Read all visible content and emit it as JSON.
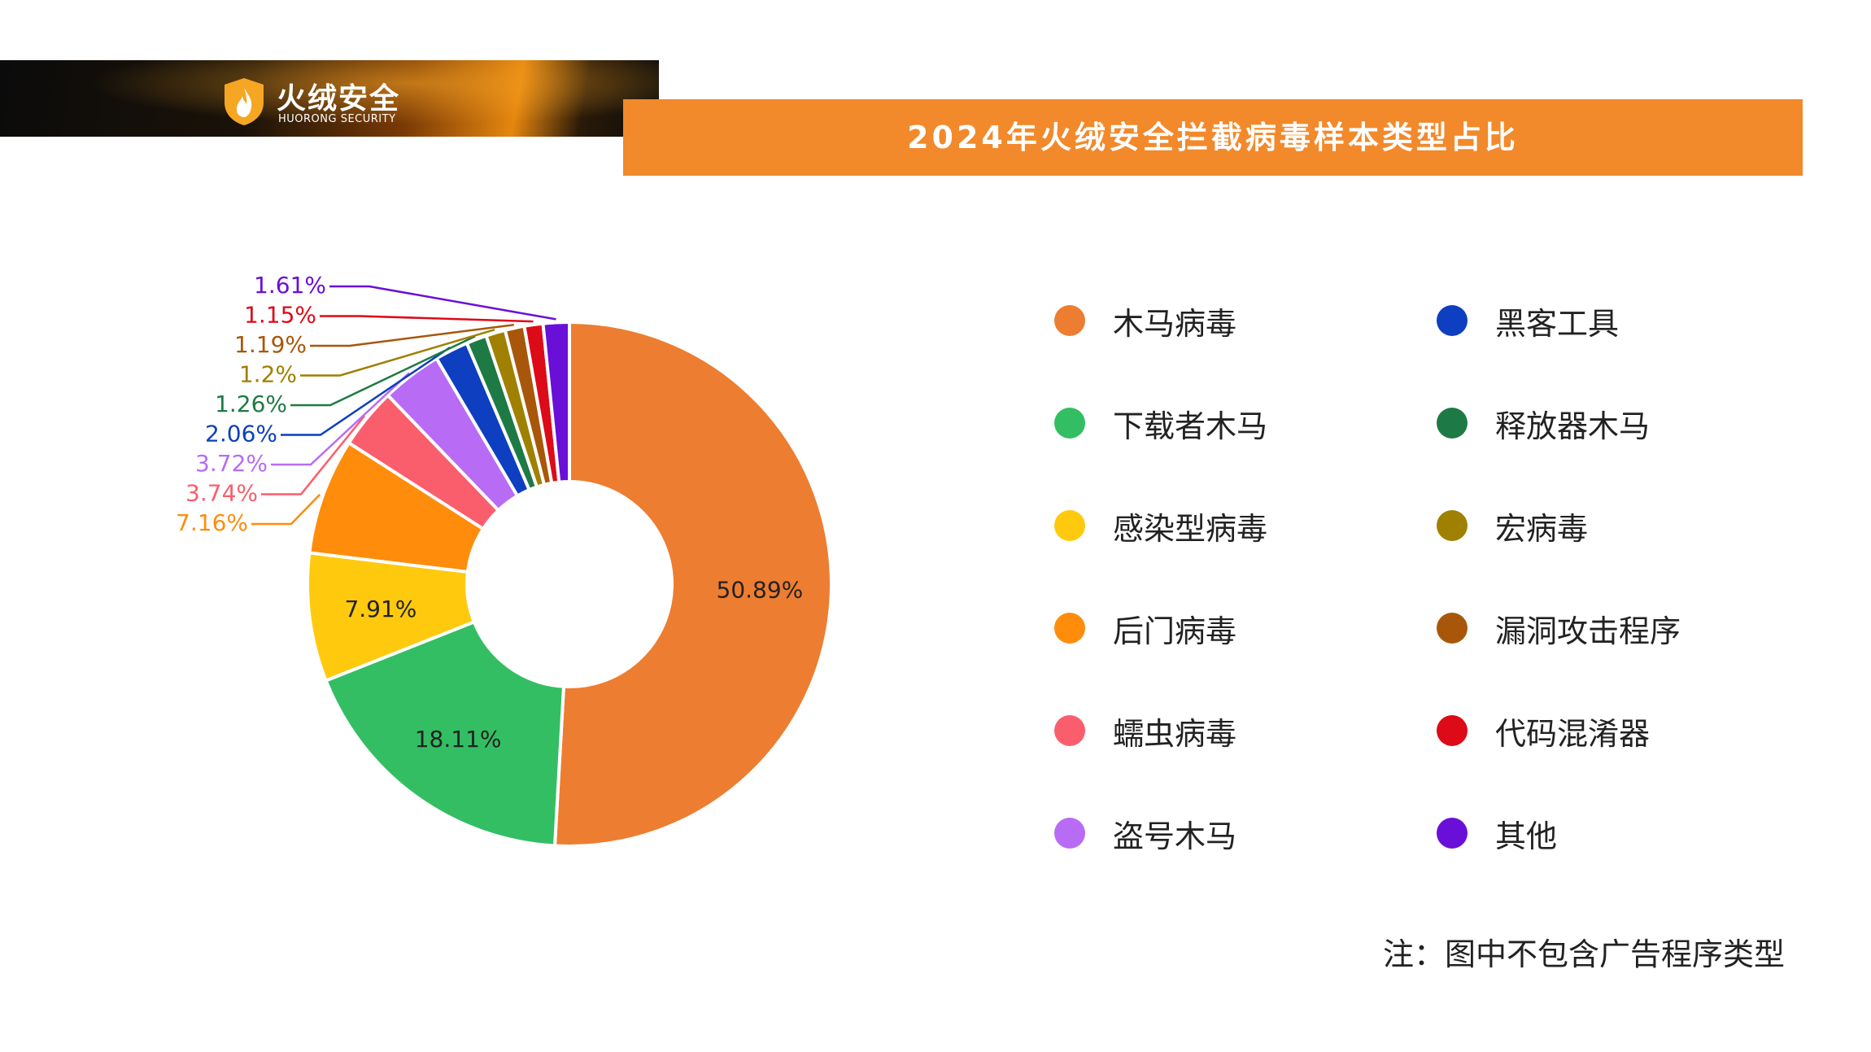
{
  "brand": {
    "name": "火绒安全",
    "subtitle": "HUORONG SECURITY"
  },
  "title": "2024年火绒安全拦截病毒样本类型占比",
  "note": "注：图中不包含广告程序类型",
  "chart_data": {
    "type": "donut",
    "title": "2024年火绒安全拦截病毒样本类型占比",
    "unit": "%",
    "legend_position": "right",
    "series": [
      {
        "name": "木马病毒",
        "value": 50.89,
        "label": "50.89%",
        "color": "#ed7d31"
      },
      {
        "name": "下载者木马",
        "value": 18.11,
        "label": "18.11%",
        "color": "#33be63"
      },
      {
        "name": "感染型病毒",
        "value": 7.91,
        "label": "7.91%",
        "color": "#ffc90e"
      },
      {
        "name": "后门病毒",
        "value": 7.16,
        "label": "7.16%",
        "color": "#ff8c0b"
      },
      {
        "name": "蠕虫病毒",
        "value": 3.74,
        "label": "3.74%",
        "color": "#fa5e6c"
      },
      {
        "name": "盗号木马",
        "value": 3.72,
        "label": "3.72%",
        "color": "#b86cf5"
      },
      {
        "name": "黑客工具",
        "value": 2.06,
        "label": "2.06%",
        "color": "#0d3fc0"
      },
      {
        "name": "释放器木马",
        "value": 1.26,
        "label": "1.26%",
        "color": "#1e7a44"
      },
      {
        "name": "宏病毒",
        "value": 1.2,
        "label": "1.2%",
        "color": "#a08000"
      },
      {
        "name": "漏洞攻击程序",
        "value": 1.19,
        "label": "1.19%",
        "color": "#a8570a"
      },
      {
        "name": "代码混淆器",
        "value": 1.15,
        "label": "1.15%",
        "color": "#dd0a18"
      },
      {
        "name": "其他",
        "value": 1.61,
        "label": "1.61%",
        "color": "#6a0fd8"
      }
    ],
    "legend_order": [
      "木马病毒",
      "黑客工具",
      "下载者木马",
      "释放器木马",
      "感染型病毒",
      "宏病毒",
      "后门病毒",
      "漏洞攻击程序",
      "蠕虫病毒",
      "代码混淆器",
      "盗号木马",
      "其他"
    ]
  }
}
